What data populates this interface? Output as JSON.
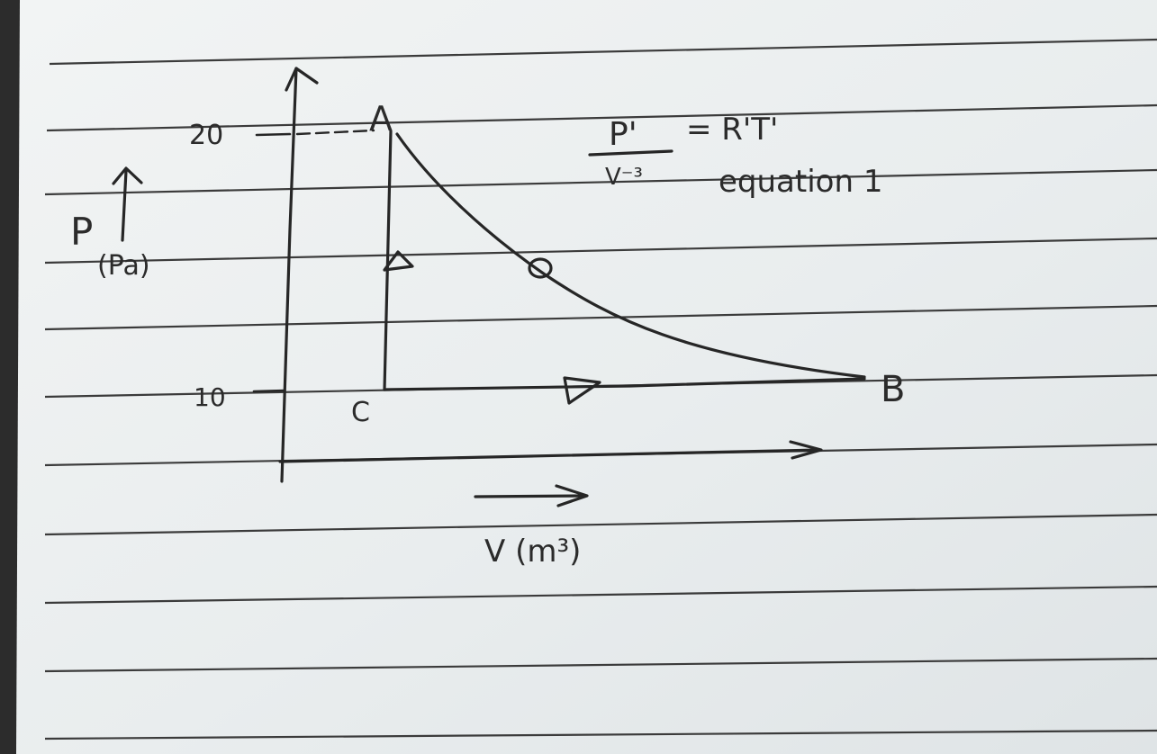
{
  "diagram": {
    "y_axis": {
      "symbol": "P",
      "unit": "(Pa)"
    },
    "x_axis": {
      "label": "V (m³)"
    },
    "ticks": {
      "upper": "20",
      "lower": "10"
    },
    "points": {
      "a": "A",
      "b": "B",
      "c": "C"
    },
    "equation": {
      "numerator": "P'",
      "denominator": "V⁻³",
      "rhs": "= R'T'",
      "label": "equation 1"
    }
  },
  "colors": {
    "paper": "#eceff0",
    "rule": "#3a3a3a",
    "ink": "#2b2b2b",
    "binding": "#2c2c2c"
  }
}
